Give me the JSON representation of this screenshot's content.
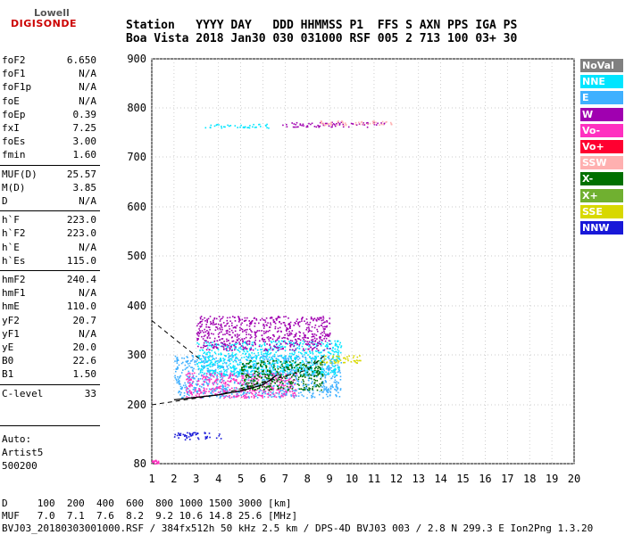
{
  "logo": {
    "line1": "Lowell",
    "line2": "DIGISONDE"
  },
  "header": {
    "row1": "Station   YYYY DAY   DDD HHMMSS P1  FFS S AXN PPS IGA PS",
    "row2": "Boa Vista 2018 Jan30 030 031000 RSF 005 2 713 100 03+ 30"
  },
  "params": [
    {
      "group": 1,
      "label": "foF2",
      "value": "6.650"
    },
    {
      "group": 1,
      "label": "foF1",
      "value": "N/A"
    },
    {
      "group": 1,
      "label": "foF1p",
      "value": "N/A"
    },
    {
      "group": 1,
      "label": "foE",
      "value": "N/A"
    },
    {
      "group": 1,
      "label": "foEp",
      "value": "0.39"
    },
    {
      "group": 1,
      "label": "fxI",
      "value": "7.25"
    },
    {
      "group": 1,
      "label": "foEs",
      "value": "3.00"
    },
    {
      "group": 1,
      "label": "fmin",
      "value": "1.60"
    },
    {
      "group": 2,
      "label": "MUF(D)",
      "value": "25.57"
    },
    {
      "group": 2,
      "label": "M(D)",
      "value": "3.85"
    },
    {
      "group": 2,
      "label": "D",
      "value": "N/A"
    },
    {
      "group": 3,
      "label": "h`F",
      "value": "223.0"
    },
    {
      "group": 3,
      "label": "h`F2",
      "value": "223.0"
    },
    {
      "group": 3,
      "label": "h`E",
      "value": "N/A"
    },
    {
      "group": 3,
      "label": "h`Es",
      "value": "115.0"
    },
    {
      "group": 4,
      "label": "hmF2",
      "value": "240.4"
    },
    {
      "group": 4,
      "label": "hmF1",
      "value": "N/A"
    },
    {
      "group": 4,
      "label": "hmE",
      "value": "110.0"
    },
    {
      "group": 4,
      "label": "yF2",
      "value": "20.7"
    },
    {
      "group": 4,
      "label": "yF1",
      "value": "N/A"
    },
    {
      "group": 4,
      "label": "yE",
      "value": "20.0"
    },
    {
      "group": 4,
      "label": "B0",
      "value": "22.6"
    },
    {
      "group": 4,
      "label": "B1",
      "value": "1.50"
    },
    {
      "group": 5,
      "label": "C-level",
      "value": "33"
    }
  ],
  "auto": {
    "line1": "Auto:",
    "line2": "Artist5",
    "line3": "500200"
  },
  "legend": [
    {
      "label": "NoVal",
      "color": "#808080"
    },
    {
      "label": "NNE",
      "color": "#00e5ff"
    },
    {
      "label": "E",
      "color": "#3fb0ff"
    },
    {
      "label": "W",
      "color": "#a000b0"
    },
    {
      "label": "Vo-",
      "color": "#ff30c0"
    },
    {
      "label": "Vo+",
      "color": "#ff0030"
    },
    {
      "label": "SSW",
      "color": "#ffb0b0"
    },
    {
      "label": "X-",
      "color": "#007000"
    },
    {
      "label": "X+",
      "color": "#70b030"
    },
    {
      "label": "SSE",
      "color": "#d8d800"
    },
    {
      "label": "NNW",
      "color": "#1818d8"
    }
  ],
  "footer": {
    "row_d": "D     100  200  400  600  800 1000 1500 3000 [km]",
    "row_muf": "MUF   7.0  7.1  7.6  8.2  9.2 10.6 14.8 25.6 [MHz]",
    "row_info": "BVJ03_20180303001000.RSF / 384fx512h 50 kHz 2.5 km / DPS-4D BVJ03 003 / 2.8 N 299.3 E Ion2Png 1.3.20"
  },
  "chart_data": {
    "type": "scatter",
    "title": "",
    "xlabel": "",
    "ylabel": "",
    "xlim": [
      1,
      20
    ],
    "ylim": [
      80,
      900
    ],
    "xticks": [
      1,
      2,
      3,
      4,
      5,
      6,
      7,
      8,
      9,
      10,
      11,
      12,
      13,
      14,
      15,
      16,
      17,
      18,
      19,
      20
    ],
    "yticks": [
      80,
      200,
      300,
      400,
      500,
      600,
      700,
      800,
      900
    ],
    "grid": true,
    "legend_position": "right",
    "clusters": [
      {
        "name": "E",
        "x": [
          2.0,
          9.5
        ],
        "y": [
          215,
          300
        ]
      },
      {
        "name": "NNE",
        "x": [
          3.0,
          9.5
        ],
        "y": [
          260,
          330
        ]
      },
      {
        "name": "W",
        "x": [
          3.0,
          9.0
        ],
        "y": [
          310,
          380
        ]
      },
      {
        "name": "Vo-",
        "x": [
          2.5,
          7.5
        ],
        "y": [
          215,
          265
        ]
      },
      {
        "name": "X-",
        "x": [
          5.0,
          8.7
        ],
        "y": [
          230,
          290
        ]
      },
      {
        "name": "SSE",
        "x": [
          8.5,
          10.5
        ],
        "y": [
          285,
          300
        ]
      },
      {
        "name": "W",
        "x": [
          6.8,
          11.5
        ],
        "y": [
          762,
          772
        ]
      },
      {
        "name": "NNE",
        "x": [
          3.3,
          6.5
        ],
        "y": [
          760,
          768
        ]
      },
      {
        "name": "SSW",
        "x": [
          8.5,
          11.8
        ],
        "y": [
          765,
          775
        ]
      },
      {
        "name": "NNW",
        "x": [
          2.0,
          4.2
        ],
        "y": [
          130,
          145
        ]
      },
      {
        "name": "Vo-",
        "x": [
          1.0,
          1.3
        ],
        "y": [
          80,
          88
        ]
      }
    ],
    "profile_line": {
      "x": [
        2.0,
        3.0,
        4.0,
        5.0,
        6.0,
        6.65
      ],
      "y": [
        210,
        215,
        220,
        228,
        240,
        260
      ]
    },
    "dashed_line": {
      "x": [
        1.0,
        4.0,
        8.0,
        8.8
      ],
      "y": [
        200,
        220,
        270,
        300
      ]
    },
    "dashed_upper": {
      "x": [
        1.0,
        3.2
      ],
      "y": [
        370,
        290
      ]
    }
  }
}
